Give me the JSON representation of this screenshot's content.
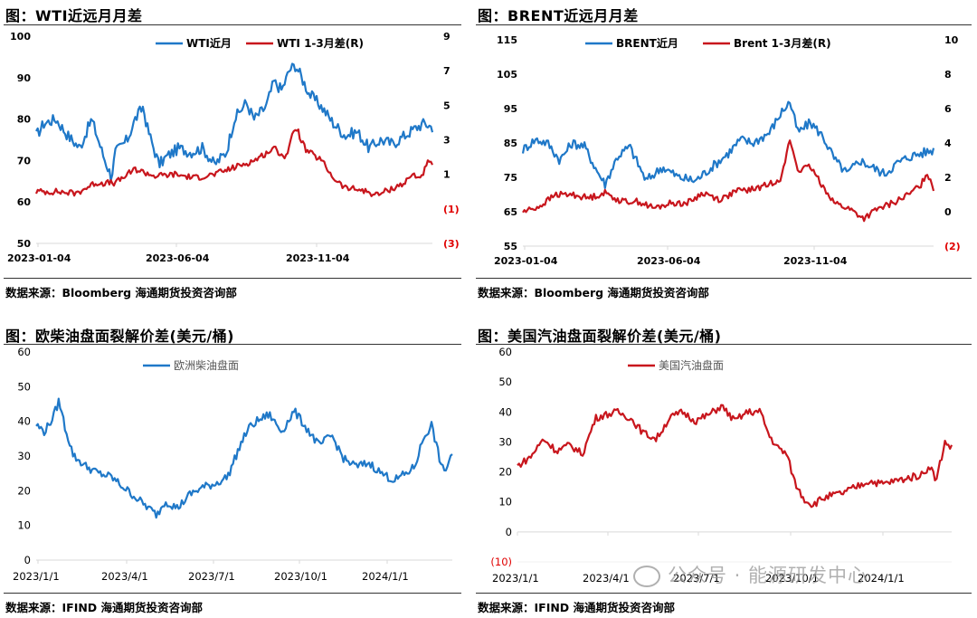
{
  "watermark": {
    "text": "公众号 · 能源研发中心",
    "icon": "wechat-icon"
  },
  "colors": {
    "blue": "#1f78c8",
    "red": "#c8161d",
    "axis": "#d9d9d9",
    "rnum": "#e00000"
  },
  "panels": [
    {
      "title": "图：WTI近远月月差",
      "source": "数据来源：Bloomberg  海通期货投资咨询部"
    },
    {
      "title": "图：BRENT近远月月差",
      "source": "数据来源：Bloomberg  海通期货投资咨询部"
    },
    {
      "title": "图：欧柴油盘面裂解价差(美元/桶)",
      "source": "数据来源：IFIND  海通期货投资咨询部"
    },
    {
      "title": "图：美国汽油盘面裂解价差(美元/桶)",
      "source": "数据来源：IFIND  海通期货投资咨询部"
    }
  ],
  "chart_data": [
    {
      "type": "line",
      "title": "图：WTI近远月月差",
      "x_tick_labels": [
        "2023-01-04",
        "2023-06-04",
        "2023-11-04"
      ],
      "y_left": {
        "ticks": [
          50,
          60,
          70,
          80,
          90,
          100
        ],
        "range": [
          50,
          100
        ]
      },
      "y_right": {
        "ticks": [
          "(3)",
          "(1)",
          "1",
          "3",
          "5",
          "7",
          "9"
        ],
        "values": [
          -3,
          -1,
          1,
          3,
          5,
          7,
          9
        ],
        "range": [
          -3,
          9
        ]
      },
      "x_range": [
        "2023-01-04",
        "2024-03-15"
      ],
      "series": [
        {
          "name": "WTI近月",
          "axis": "left",
          "color": "blue",
          "t": [
            0.0,
            0.02,
            0.05,
            0.08,
            0.11,
            0.14,
            0.17,
            0.19,
            0.2,
            0.23,
            0.25,
            0.27,
            0.28,
            0.31,
            0.33,
            0.36,
            0.39,
            0.42,
            0.45,
            0.48,
            0.5,
            0.53,
            0.55,
            0.58,
            0.6,
            0.62,
            0.64,
            0.655,
            0.67,
            0.69,
            0.72,
            0.75,
            0.78,
            0.81,
            0.84,
            0.87,
            0.9,
            0.93,
            0.96,
            0.98,
            1.0
          ],
          "values": [
            76,
            79,
            80,
            76,
            73,
            80,
            71,
            66,
            72,
            75,
            80,
            83,
            78,
            69,
            71,
            73,
            72,
            73,
            69,
            72,
            80,
            84,
            80,
            83,
            89,
            87,
            92,
            93,
            90,
            86,
            83,
            79,
            76,
            77,
            73,
            75,
            74,
            76,
            78,
            79,
            78
          ]
        },
        {
          "name": "WTI 1-3月差(R)",
          "axis": "right",
          "color": "red",
          "t": [
            0.0,
            0.05,
            0.1,
            0.15,
            0.2,
            0.25,
            0.3,
            0.35,
            0.4,
            0.45,
            0.5,
            0.55,
            0.6,
            0.63,
            0.655,
            0.68,
            0.72,
            0.75,
            0.78,
            0.82,
            0.86,
            0.9,
            0.93,
            0.95,
            0.97,
            0.99,
            1.0
          ],
          "values": [
            0.0,
            0.0,
            -0.1,
            0.5,
            0.5,
            1.3,
            0.9,
            1.0,
            0.8,
            1.0,
            1.4,
            1.8,
            2.5,
            2.0,
            3.8,
            2.4,
            1.8,
            0.8,
            0.2,
            0.1,
            -0.2,
            0.2,
            0.5,
            1.0,
            0.8,
            1.7,
            1.5
          ]
        }
      ],
      "legend": [
        "WTI近月",
        "WTI 1-3月差(R)"
      ]
    },
    {
      "type": "line",
      "title": "图：BRENT近远月月差",
      "x_tick_labels": [
        "2023-01-04",
        "2023-06-04",
        "2023-11-04"
      ],
      "y_left": {
        "ticks": [
          55,
          65,
          75,
          85,
          95,
          105,
          115
        ],
        "range": [
          55,
          115
        ]
      },
      "y_right": {
        "ticks": [
          "(2)",
          "0",
          "2",
          "4",
          "6",
          "8",
          "10"
        ],
        "values": [
          -2,
          0,
          2,
          4,
          6,
          8,
          10
        ],
        "range": [
          -2,
          10
        ]
      },
      "x_range": [
        "2023-01-04",
        "2024-03-15"
      ],
      "series": [
        {
          "name": "BRENT近月",
          "axis": "left",
          "color": "blue",
          "t": [
            0.0,
            0.03,
            0.06,
            0.09,
            0.12,
            0.15,
            0.18,
            0.2,
            0.23,
            0.26,
            0.3,
            0.34,
            0.38,
            0.42,
            0.46,
            0.5,
            0.53,
            0.56,
            0.6,
            0.63,
            0.65,
            0.67,
            0.7,
            0.73,
            0.76,
            0.79,
            0.82,
            0.85,
            0.88,
            0.91,
            0.94,
            0.97,
            1.0
          ],
          "values": [
            83,
            86,
            85,
            80,
            85,
            84,
            77,
            73,
            81,
            84,
            74,
            78,
            75,
            74,
            78,
            82,
            86,
            85,
            88,
            94,
            97,
            88,
            91,
            87,
            80,
            76,
            80,
            78,
            76,
            79,
            81,
            82,
            83
          ]
        },
        {
          "name": "Brent 1-3月差(R)",
          "axis": "right",
          "color": "red",
          "t": [
            0.0,
            0.04,
            0.08,
            0.12,
            0.16,
            0.2,
            0.24,
            0.28,
            0.32,
            0.36,
            0.4,
            0.44,
            0.48,
            0.52,
            0.56,
            0.6,
            0.63,
            0.65,
            0.67,
            0.7,
            0.73,
            0.76,
            0.8,
            0.83,
            0.86,
            0.9,
            0.94,
            0.97,
            0.985,
            1.0
          ],
          "values": [
            0.0,
            0.3,
            1.0,
            1.0,
            0.8,
            1.1,
            0.6,
            0.6,
            0.2,
            0.5,
            0.5,
            1.1,
            0.7,
            1.2,
            1.3,
            1.6,
            2.0,
            4.2,
            2.4,
            2.6,
            1.5,
            0.5,
            0.1,
            -0.4,
            0.1,
            0.5,
            1.0,
            1.6,
            2.3,
            1.3
          ]
        }
      ],
      "legend": [
        "BRENT近月",
        "Brent 1-3月差(R)"
      ]
    },
    {
      "type": "line",
      "title": "图：欧柴油盘面裂解价差(美元/桶)",
      "x_tick_labels": [
        "2023/1/1",
        "2023/4/1",
        "2023/7/1",
        "2023/10/1",
        "2024/1/1"
      ],
      "y_left": {
        "ticks": [
          0,
          10,
          20,
          30,
          40,
          50,
          60
        ],
        "range": [
          0,
          60
        ]
      },
      "x_range": [
        "2023-01-01",
        "2024-03-20"
      ],
      "series": [
        {
          "name": "欧洲柴油盘面",
          "axis": "left",
          "color": "blue",
          "t": [
            0.0,
            0.02,
            0.04,
            0.055,
            0.07,
            0.09,
            0.12,
            0.15,
            0.18,
            0.22,
            0.26,
            0.29,
            0.31,
            0.34,
            0.37,
            0.4,
            0.43,
            0.46,
            0.49,
            0.51,
            0.53,
            0.56,
            0.59,
            0.62,
            0.65,
            0.68,
            0.71,
            0.74,
            0.77,
            0.8,
            0.83,
            0.86,
            0.89,
            0.91,
            0.93,
            0.95,
            0.97,
            0.98,
            1.0
          ],
          "values": [
            39,
            37,
            41,
            46,
            38,
            30,
            27,
            25,
            24,
            20,
            16,
            13,
            17,
            15,
            19,
            21,
            22,
            24,
            33,
            38,
            40,
            42,
            37,
            43,
            38,
            33,
            36,
            29,
            27,
            28,
            25,
            23,
            25,
            27,
            35,
            39,
            29,
            25,
            31
          ]
        }
      ],
      "legend": [
        "欧洲柴油盘面"
      ]
    },
    {
      "type": "line",
      "title": "图：美国汽油盘面裂解价差(美元/桶)",
      "x_tick_labels": [
        "2023/1/1",
        "2023/4/1",
        "2023/7/1",
        "2023/10/1",
        "2024/1/1"
      ],
      "y_left": {
        "ticks": [
          "(10)",
          "0",
          "10",
          "20",
          "30",
          "40",
          "50",
          "60"
        ],
        "values": [
          -10,
          0,
          10,
          20,
          30,
          40,
          50,
          60
        ],
        "range": [
          -10,
          60
        ]
      },
      "x_range": [
        "2023-01-01",
        "2024-03-20"
      ],
      "series": [
        {
          "name": "美国汽油盘面",
          "axis": "left",
          "color": "red",
          "t": [
            0.0,
            0.03,
            0.06,
            0.09,
            0.12,
            0.15,
            0.18,
            0.2,
            0.23,
            0.26,
            0.29,
            0.32,
            0.35,
            0.38,
            0.41,
            0.44,
            0.47,
            0.5,
            0.53,
            0.56,
            0.58,
            0.6,
            0.62,
            0.64,
            0.66,
            0.68,
            0.7,
            0.72,
            0.75,
            0.78,
            0.81,
            0.84,
            0.87,
            0.9,
            0.93,
            0.95,
            0.965,
            0.97,
            0.985,
            1.0
          ],
          "values": [
            22,
            25,
            31,
            27,
            29,
            26,
            38,
            39,
            40,
            38,
            33,
            31,
            38,
            40,
            37,
            39,
            42,
            37,
            40,
            40,
            32,
            28,
            26,
            16,
            11,
            9,
            11,
            12,
            13,
            15,
            17,
            16,
            17,
            18,
            19,
            22,
            17,
            21,
            30,
            28
          ]
        }
      ],
      "legend": [
        "美国汽油盘面"
      ]
    }
  ]
}
